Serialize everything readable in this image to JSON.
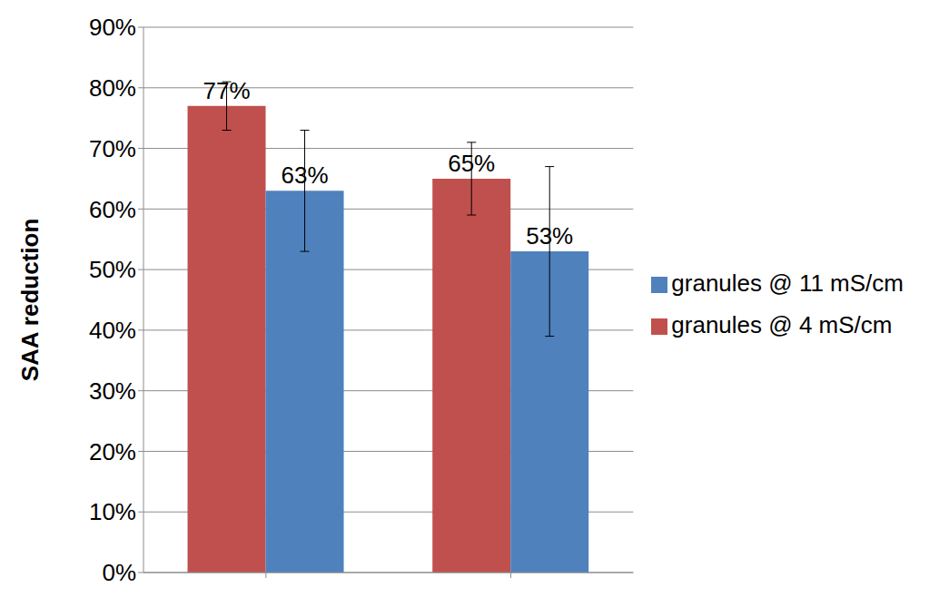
{
  "chart_data": {
    "type": "bar",
    "categories": [
      null,
      null
    ],
    "y_label": "SAA reduction",
    "ylim": [
      0,
      90
    ],
    "yticks": [
      {
        "value": 0,
        "label": "0%"
      },
      {
        "value": 10,
        "label": "10%"
      },
      {
        "value": 20,
        "label": "20%"
      },
      {
        "value": 30,
        "label": "30%"
      },
      {
        "value": 40,
        "label": "40%"
      },
      {
        "value": 50,
        "label": "50%"
      },
      {
        "value": 60,
        "label": "60%"
      },
      {
        "value": 70,
        "label": "70%"
      },
      {
        "value": 80,
        "label": "80%"
      },
      {
        "value": 90,
        "label": "90%"
      }
    ],
    "grid": true,
    "legend": "right",
    "data_labels": true,
    "series": [
      {
        "name": "granules @ 4 mS/cm",
        "color": "#c0504d",
        "values": [
          77,
          65
        ],
        "value_labels": [
          "77%",
          "65%"
        ],
        "errors": [
          4,
          6
        ]
      },
      {
        "name": "granules @ 11 mS/cm",
        "color": "#4f81bd",
        "values": [
          63,
          53
        ],
        "value_labels": [
          "63%",
          "53%"
        ],
        "errors": [
          10,
          14
        ]
      }
    ]
  }
}
